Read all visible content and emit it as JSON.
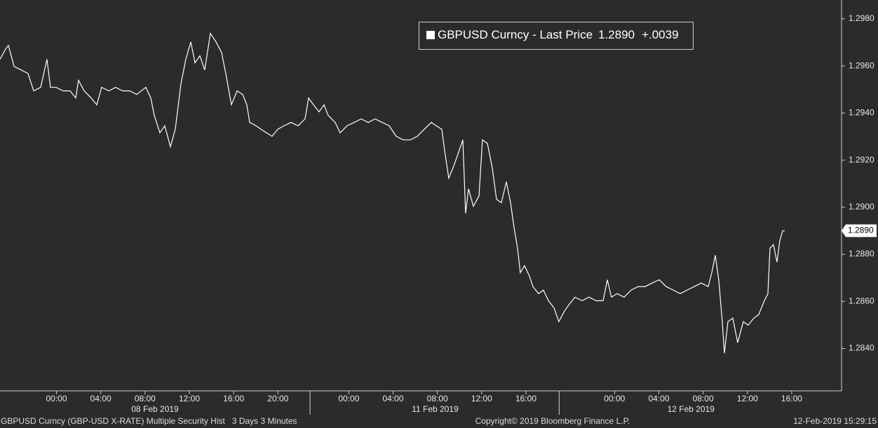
{
  "chart_data": {
    "type": "line",
    "series": [
      {
        "name": "GBPUSD Curncy - Last Price",
        "last_label": "1.2890",
        "change_label": "+.0039",
        "color": "#ffffff",
        "x": [
          0,
          0.51,
          0.76,
          1.27,
          1.9,
          2.53,
          3.04,
          3.67,
          4.24,
          4.56,
          5.07,
          5.7,
          6.33,
          6.84,
          7.09,
          7.6,
          8.23,
          8.74,
          9.18,
          9.82,
          10.45,
          11.08,
          11.72,
          12.35,
          13.17,
          13.62,
          13.93,
          14.44,
          14.88,
          15.39,
          15.83,
          16.34,
          16.78,
          17.23,
          17.61,
          18.05,
          18.49,
          19.0,
          19.51,
          20.01,
          20.39,
          20.9,
          21.41,
          21.91,
          22.29,
          22.55,
          23.12,
          23.56,
          24.07,
          24.57,
          25.08,
          25.65,
          26.28,
          26.92,
          27.55,
          27.87,
          28.31,
          28.82,
          29.26,
          29.64,
          30.27,
          30.72,
          31.35,
          31.98,
          32.62,
          33.25,
          33.88,
          34.52,
          35.15,
          35.78,
          36.42,
          37.05,
          37.68,
          38.32,
          38.95,
          39.39,
          39.9,
          40.15,
          40.53,
          41.04,
          41.48,
          41.8,
          42.05,
          42.31,
          42.75,
          43.26,
          43.57,
          44.02,
          44.46,
          44.84,
          45.28,
          45.73,
          46.11,
          46.42,
          46.74,
          46.99,
          47.37,
          47.82,
          48.13,
          48.64,
          49.08,
          49.53,
          50.03,
          50.47,
          50.98,
          51.43,
          51.93,
          52.57,
          53.2,
          53.83,
          54.47,
          54.85,
          55.22,
          55.73,
          56.36,
          57.0,
          57.63,
          58.26,
          58.9,
          59.53,
          60.16,
          60.8,
          61.43,
          62.06,
          62.7,
          63.33,
          63.96,
          64.28,
          64.6,
          64.91,
          65.23,
          65.42,
          65.74,
          66.18,
          66.62,
          67.13,
          67.57,
          68.08,
          68.52,
          69.03,
          69.35,
          69.54,
          69.85,
          70.17,
          70.42,
          70.68,
          70.87
        ],
        "values": [
          1.29628,
          1.29672,
          1.29687,
          1.29598,
          1.29583,
          1.29568,
          1.29494,
          1.29509,
          1.29628,
          1.29509,
          1.29509,
          1.29494,
          1.29494,
          1.29464,
          1.29539,
          1.29494,
          1.29464,
          1.29435,
          1.29509,
          1.29494,
          1.29509,
          1.29494,
          1.29494,
          1.29479,
          1.29509,
          1.29464,
          1.2939,
          1.29316,
          1.29346,
          1.29257,
          1.29331,
          1.29524,
          1.29628,
          1.29702,
          1.29613,
          1.29643,
          1.29583,
          1.29738,
          1.29702,
          1.29657,
          1.29568,
          1.29435,
          1.29494,
          1.29479,
          1.29435,
          1.2936,
          1.29346,
          1.29331,
          1.29316,
          1.29301,
          1.29331,
          1.29346,
          1.2936,
          1.29346,
          1.29375,
          1.29464,
          1.29435,
          1.29405,
          1.29435,
          1.2939,
          1.2936,
          1.29316,
          1.29346,
          1.2936,
          1.29375,
          1.2936,
          1.29375,
          1.2936,
          1.29346,
          1.29301,
          1.29286,
          1.29286,
          1.29301,
          1.29331,
          1.2936,
          1.29346,
          1.29331,
          1.29242,
          1.29123,
          1.29183,
          1.29242,
          1.29286,
          1.28974,
          1.29078,
          1.29004,
          1.29048,
          1.29286,
          1.29271,
          1.29167,
          1.29034,
          1.29019,
          1.29108,
          1.29019,
          1.28915,
          1.28826,
          1.28722,
          1.28752,
          1.28707,
          1.28663,
          1.28633,
          1.28648,
          1.28603,
          1.28573,
          1.28514,
          1.28559,
          1.28589,
          1.28618,
          1.28603,
          1.28618,
          1.28603,
          1.28603,
          1.28692,
          1.28618,
          1.28633,
          1.28618,
          1.28648,
          1.28663,
          1.28663,
          1.28678,
          1.28692,
          1.28663,
          1.28648,
          1.28633,
          1.28648,
          1.28663,
          1.28678,
          1.28663,
          1.28722,
          1.28796,
          1.28692,
          1.28514,
          1.2838,
          1.28514,
          1.28529,
          1.28425,
          1.28514,
          1.28499,
          1.28529,
          1.28544,
          1.28603,
          1.28633,
          1.28826,
          1.28841,
          1.28767,
          1.28856,
          1.289,
          1.289
        ]
      }
    ],
    "xlim": [
      0,
      76
    ],
    "xticks": [
      {
        "value": 5.1,
        "label": "00:00"
      },
      {
        "value": 9.1,
        "label": "04:00"
      },
      {
        "value": 13.1,
        "label": "08:00"
      },
      {
        "value": 17.1,
        "label": "12:00"
      },
      {
        "value": 21.1,
        "label": "16:00"
      },
      {
        "value": 25.1,
        "label": "20:00"
      },
      {
        "value": 31.5,
        "label": "00:00"
      },
      {
        "value": 35.5,
        "label": "04:00"
      },
      {
        "value": 39.5,
        "label": "08:00"
      },
      {
        "value": 43.5,
        "label": "12:00"
      },
      {
        "value": 47.5,
        "label": "16:00"
      },
      {
        "value": 55.5,
        "label": "00:00"
      },
      {
        "value": 59.5,
        "label": "04:00"
      },
      {
        "value": 63.5,
        "label": "08:00"
      },
      {
        "value": 67.5,
        "label": "12:00"
      },
      {
        "value": 71.5,
        "label": "16:00"
      }
    ],
    "day_labels": [
      {
        "value": 14.0,
        "label": "08 Feb 2019"
      },
      {
        "value": 39.3,
        "label": "11 Feb 2019"
      },
      {
        "value": 62.4,
        "label": "12 Feb 2019"
      }
    ],
    "day_separators": [
      28.0,
      50.5
    ],
    "ylim": [
      1.2822,
      1.2988
    ],
    "yticks": [
      {
        "value": 1.284,
        "label": "1.2840"
      },
      {
        "value": 1.286,
        "label": "1.2860"
      },
      {
        "value": 1.288,
        "label": "1.2880"
      },
      {
        "value": 1.29,
        "label": "1.2900"
      },
      {
        "value": 1.292,
        "label": "1.2920"
      },
      {
        "value": 1.294,
        "label": "1.2940"
      },
      {
        "value": 1.296,
        "label": "1.2960"
      },
      {
        "value": 1.298,
        "label": "1.2980"
      }
    ],
    "y_axis_side": "right",
    "grid": false,
    "background": "#2b2b2b"
  },
  "footer": {
    "left": "GBPUSD Curncy (GBP-USD X-RATE) Multiple Security Hist   3 Days 3 Minutes",
    "center": "Copyright© 2019 Bloomberg Finance L.P.",
    "right": "12-Feb-2019 15:29:15"
  }
}
